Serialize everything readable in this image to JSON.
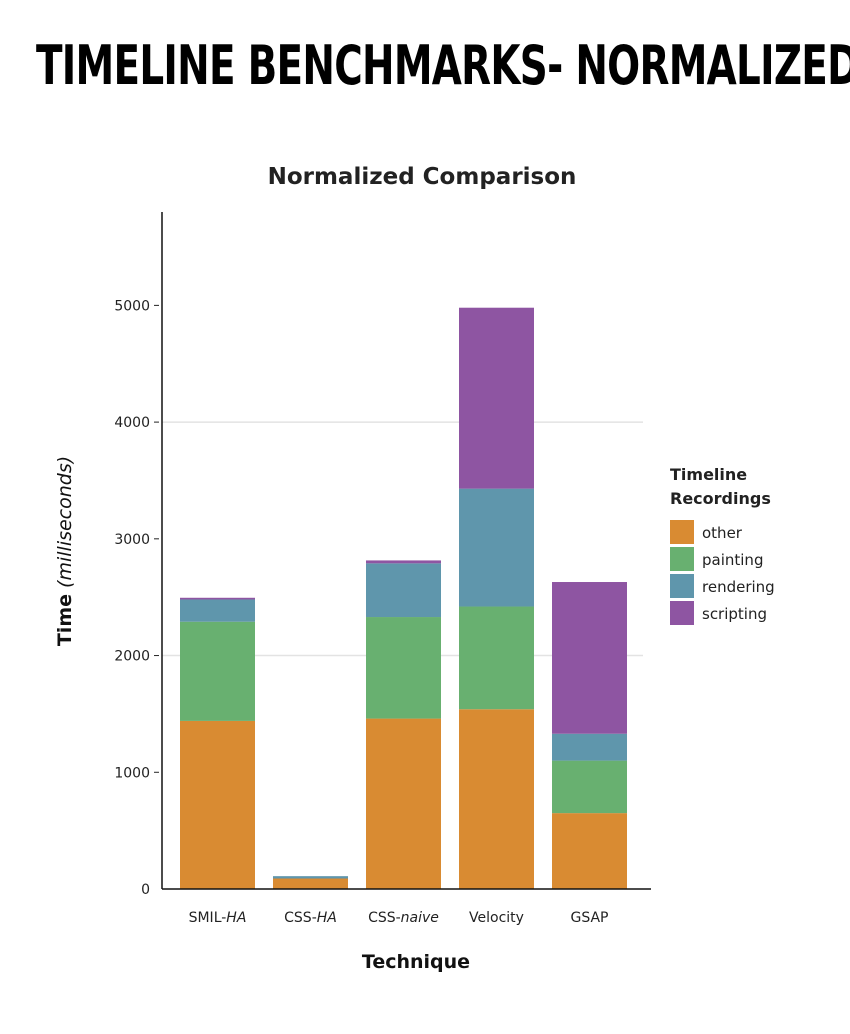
{
  "page": {
    "title": "TIMELINE BENCHMARKS- NORMALIZED"
  },
  "chart_data": {
    "type": "bar",
    "stacked": true,
    "title": "Normalized Comparison",
    "xlabel": "Technique",
    "ylabel": "Time",
    "ylabel_suffix": "(milliseconds)",
    "ylim": [
      0,
      5800
    ],
    "yticks": [
      0,
      1000,
      2000,
      3000,
      4000,
      5000
    ],
    "gridlines": [
      2000,
      4000
    ],
    "categories": [
      {
        "main": "SMIL-",
        "suffix": "HA"
      },
      {
        "main": "CSS-",
        "suffix": "HA"
      },
      {
        "main": "CSS-",
        "suffix": "naive"
      },
      {
        "main": "Velocity",
        "suffix": ""
      },
      {
        "main": "GSAP",
        "suffix": ""
      }
    ],
    "legend": {
      "title_line1": "Timeline",
      "title_line2": "Recordings",
      "position": "right"
    },
    "series": [
      {
        "name": "other",
        "color": "#d98b32",
        "values": [
          1440,
          90,
          1460,
          1540,
          650
        ]
      },
      {
        "name": "painting",
        "color": "#68b070",
        "values": [
          850,
          0,
          870,
          880,
          450
        ]
      },
      {
        "name": "rendering",
        "color": "#5f96ac",
        "values": [
          190,
          20,
          460,
          1010,
          230
        ]
      },
      {
        "name": "scripting",
        "color": "#8e55a2",
        "values": [
          15,
          0,
          25,
          1550,
          1300
        ]
      }
    ]
  }
}
